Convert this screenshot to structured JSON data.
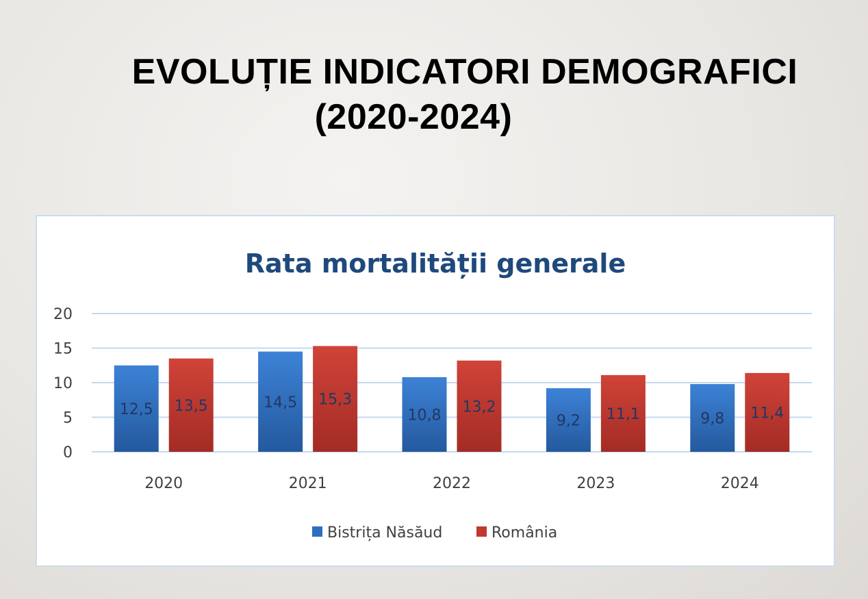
{
  "slide": {
    "title_line1": "EVOLUȚIE INDICATORI DEMOGRAFICI",
    "title_line2": "(2020-2024)"
  },
  "chart_data": {
    "type": "bar",
    "title": "Rata mortalității generale",
    "categories": [
      "2020",
      "2021",
      "2022",
      "2023",
      "2024"
    ],
    "series": [
      {
        "name": "Bistrița Năsăud",
        "values": [
          12.5,
          14.5,
          10.8,
          9.2,
          9.8
        ],
        "labels": [
          "12,5",
          "14,5",
          "10,8",
          "9,2",
          "9,8"
        ],
        "color": "#2e6fbf"
      },
      {
        "name": "România",
        "values": [
          13.5,
          15.3,
          13.2,
          11.1,
          11.4
        ],
        "labels": [
          "13,5",
          "15,3",
          "13,2",
          "11,1",
          "11,4"
        ],
        "color": "#c0392f"
      }
    ],
    "yticks": [
      "0",
      "5",
      "10",
      "15",
      "20"
    ],
    "ylim": [
      0,
      20
    ],
    "grid": true,
    "legend_position": "bottom"
  }
}
